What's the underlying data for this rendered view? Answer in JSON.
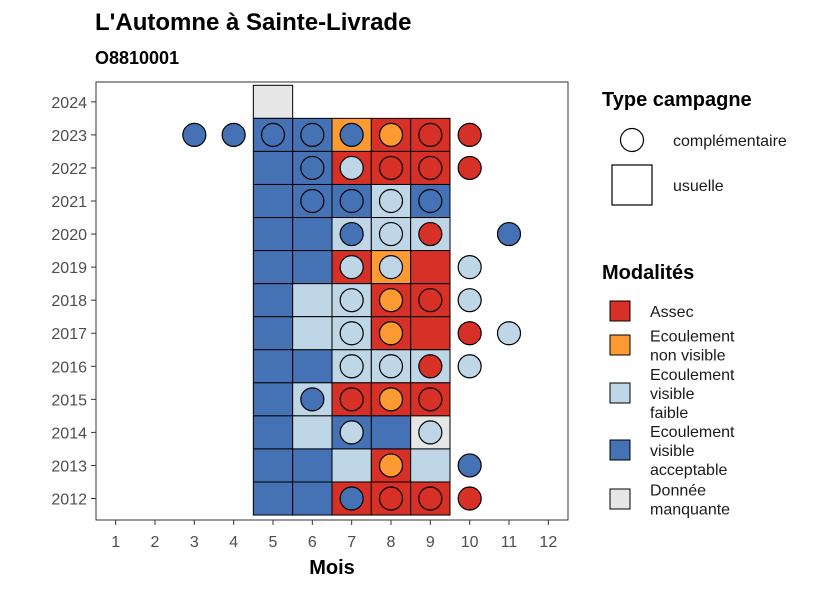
{
  "chart_data": {
    "type": "heatmap",
    "title": "L'Automne à Sainte-Livrade",
    "subtitle": "O8810001",
    "xlabel": "Mois",
    "ylabel": "",
    "x_ticks": [
      "1",
      "2",
      "3",
      "4",
      "5",
      "6",
      "7",
      "8",
      "9",
      "10",
      "11",
      "12"
    ],
    "y_ticks": [
      "2012",
      "2013",
      "2014",
      "2015",
      "2016",
      "2017",
      "2018",
      "2019",
      "2020",
      "2021",
      "2022",
      "2023",
      "2024"
    ],
    "xlim": [
      0.5,
      12.5
    ],
    "ylim": [
      2011.35,
      2024.6
    ],
    "colors": {
      "assec": "#d73027",
      "ecoulement_non_visible": "#fd9b32",
      "ecoulement_visible_faible": "#bed6e6",
      "ecoulement_visible_acceptable": "#4572b4",
      "donnee_manquante": "#e6e6e6"
    },
    "squares": [
      {
        "year": 2024,
        "month": 5,
        "mod": "donnee_manquante"
      },
      {
        "year": 2023,
        "month": 5,
        "mod": "ecoulement_visible_acceptable"
      },
      {
        "year": 2023,
        "month": 6,
        "mod": "ecoulement_visible_acceptable"
      },
      {
        "year": 2023,
        "month": 7,
        "mod": "ecoulement_non_visible"
      },
      {
        "year": 2023,
        "month": 8,
        "mod": "assec"
      },
      {
        "year": 2023,
        "month": 9,
        "mod": "assec"
      },
      {
        "year": 2022,
        "month": 5,
        "mod": "ecoulement_visible_acceptable"
      },
      {
        "year": 2022,
        "month": 6,
        "mod": "ecoulement_visible_acceptable"
      },
      {
        "year": 2022,
        "month": 7,
        "mod": "assec"
      },
      {
        "year": 2022,
        "month": 8,
        "mod": "assec"
      },
      {
        "year": 2022,
        "month": 9,
        "mod": "assec"
      },
      {
        "year": 2021,
        "month": 5,
        "mod": "ecoulement_visible_acceptable"
      },
      {
        "year": 2021,
        "month": 6,
        "mod": "ecoulement_visible_acceptable"
      },
      {
        "year": 2021,
        "month": 7,
        "mod": "ecoulement_visible_acceptable"
      },
      {
        "year": 2021,
        "month": 8,
        "mod": "ecoulement_visible_faible"
      },
      {
        "year": 2021,
        "month": 9,
        "mod": "ecoulement_visible_acceptable"
      },
      {
        "year": 2020,
        "month": 5,
        "mod": "ecoulement_visible_acceptable"
      },
      {
        "year": 2020,
        "month": 6,
        "mod": "ecoulement_visible_acceptable"
      },
      {
        "year": 2020,
        "month": 7,
        "mod": "ecoulement_visible_faible"
      },
      {
        "year": 2020,
        "month": 8,
        "mod": "ecoulement_visible_faible"
      },
      {
        "year": 2020,
        "month": 9,
        "mod": "ecoulement_visible_faible"
      },
      {
        "year": 2019,
        "month": 5,
        "mod": "ecoulement_visible_acceptable"
      },
      {
        "year": 2019,
        "month": 6,
        "mod": "ecoulement_visible_acceptable"
      },
      {
        "year": 2019,
        "month": 7,
        "mod": "assec"
      },
      {
        "year": 2019,
        "month": 8,
        "mod": "ecoulement_non_visible"
      },
      {
        "year": 2019,
        "month": 9,
        "mod": "assec"
      },
      {
        "year": 2018,
        "month": 5,
        "mod": "ecoulement_visible_acceptable"
      },
      {
        "year": 2018,
        "month": 6,
        "mod": "ecoulement_visible_faible"
      },
      {
        "year": 2018,
        "month": 7,
        "mod": "ecoulement_visible_faible"
      },
      {
        "year": 2018,
        "month": 8,
        "mod": "assec"
      },
      {
        "year": 2018,
        "month": 9,
        "mod": "assec"
      },
      {
        "year": 2017,
        "month": 5,
        "mod": "ecoulement_visible_acceptable"
      },
      {
        "year": 2017,
        "month": 6,
        "mod": "ecoulement_visible_faible"
      },
      {
        "year": 2017,
        "month": 7,
        "mod": "ecoulement_visible_faible"
      },
      {
        "year": 2017,
        "month": 8,
        "mod": "assec"
      },
      {
        "year": 2017,
        "month": 9,
        "mod": "assec"
      },
      {
        "year": 2016,
        "month": 5,
        "mod": "ecoulement_visible_acceptable"
      },
      {
        "year": 2016,
        "month": 6,
        "mod": "ecoulement_visible_acceptable"
      },
      {
        "year": 2016,
        "month": 7,
        "mod": "ecoulement_visible_faible"
      },
      {
        "year": 2016,
        "month": 8,
        "mod": "ecoulement_visible_faible"
      },
      {
        "year": 2016,
        "month": 9,
        "mod": "ecoulement_visible_faible"
      },
      {
        "year": 2015,
        "month": 5,
        "mod": "ecoulement_visible_acceptable"
      },
      {
        "year": 2015,
        "month": 6,
        "mod": "ecoulement_visible_faible"
      },
      {
        "year": 2015,
        "month": 7,
        "mod": "assec"
      },
      {
        "year": 2015,
        "month": 8,
        "mod": "assec"
      },
      {
        "year": 2015,
        "month": 9,
        "mod": "assec"
      },
      {
        "year": 2014,
        "month": 5,
        "mod": "ecoulement_visible_acceptable"
      },
      {
        "year": 2014,
        "month": 6,
        "mod": "ecoulement_visible_faible"
      },
      {
        "year": 2014,
        "month": 7,
        "mod": "ecoulement_visible_acceptable"
      },
      {
        "year": 2014,
        "month": 8,
        "mod": "ecoulement_visible_acceptable"
      },
      {
        "year": 2014,
        "month": 9,
        "mod": "donnee_manquante"
      },
      {
        "year": 2013,
        "month": 5,
        "mod": "ecoulement_visible_acceptable"
      },
      {
        "year": 2013,
        "month": 6,
        "mod": "ecoulement_visible_acceptable"
      },
      {
        "year": 2013,
        "month": 7,
        "mod": "ecoulement_visible_faible"
      },
      {
        "year": 2013,
        "month": 8,
        "mod": "assec"
      },
      {
        "year": 2013,
        "month": 9,
        "mod": "ecoulement_visible_faible"
      },
      {
        "year": 2012,
        "month": 5,
        "mod": "ecoulement_visible_acceptable"
      },
      {
        "year": 2012,
        "month": 6,
        "mod": "ecoulement_visible_acceptable"
      },
      {
        "year": 2012,
        "month": 7,
        "mod": "assec"
      },
      {
        "year": 2012,
        "month": 8,
        "mod": "assec"
      },
      {
        "year": 2012,
        "month": 9,
        "mod": "assec"
      }
    ],
    "circles": [
      {
        "year": 2023,
        "month": 3,
        "mod": "ecoulement_visible_acceptable"
      },
      {
        "year": 2023,
        "month": 4,
        "mod": "ecoulement_visible_acceptable"
      },
      {
        "year": 2023,
        "month": 5,
        "mod": "ecoulement_visible_acceptable"
      },
      {
        "year": 2023,
        "month": 6,
        "mod": "ecoulement_visible_acceptable"
      },
      {
        "year": 2023,
        "month": 7,
        "mod": "ecoulement_visible_acceptable"
      },
      {
        "year": 2023,
        "month": 8,
        "mod": "ecoulement_non_visible"
      },
      {
        "year": 2023,
        "month": 9,
        "mod": "assec"
      },
      {
        "year": 2023,
        "month": 10,
        "mod": "assec"
      },
      {
        "year": 2022,
        "month": 6,
        "mod": "ecoulement_visible_acceptable"
      },
      {
        "year": 2022,
        "month": 7,
        "mod": "ecoulement_visible_faible"
      },
      {
        "year": 2022,
        "month": 8,
        "mod": "assec"
      },
      {
        "year": 2022,
        "month": 9,
        "mod": "assec"
      },
      {
        "year": 2022,
        "month": 10,
        "mod": "assec"
      },
      {
        "year": 2021,
        "month": 6,
        "mod": "ecoulement_visible_acceptable"
      },
      {
        "year": 2021,
        "month": 7,
        "mod": "ecoulement_visible_acceptable"
      },
      {
        "year": 2021,
        "month": 8,
        "mod": "ecoulement_visible_faible"
      },
      {
        "year": 2021,
        "month": 9,
        "mod": "ecoulement_visible_acceptable"
      },
      {
        "year": 2020,
        "month": 7,
        "mod": "ecoulement_visible_acceptable"
      },
      {
        "year": 2020,
        "month": 8,
        "mod": "ecoulement_visible_faible"
      },
      {
        "year": 2020,
        "month": 9,
        "mod": "assec"
      },
      {
        "year": 2020,
        "month": 11,
        "mod": "ecoulement_visible_acceptable"
      },
      {
        "year": 2019,
        "month": 7,
        "mod": "ecoulement_visible_faible"
      },
      {
        "year": 2019,
        "month": 8,
        "mod": "ecoulement_visible_faible"
      },
      {
        "year": 2019,
        "month": 10,
        "mod": "ecoulement_visible_faible"
      },
      {
        "year": 2018,
        "month": 7,
        "mod": "ecoulement_visible_faible"
      },
      {
        "year": 2018,
        "month": 8,
        "mod": "ecoulement_non_visible"
      },
      {
        "year": 2018,
        "month": 9,
        "mod": "assec"
      },
      {
        "year": 2018,
        "month": 10,
        "mod": "ecoulement_visible_faible"
      },
      {
        "year": 2017,
        "month": 7,
        "mod": "ecoulement_visible_faible"
      },
      {
        "year": 2017,
        "month": 8,
        "mod": "ecoulement_non_visible"
      },
      {
        "year": 2017,
        "month": 10,
        "mod": "assec"
      },
      {
        "year": 2017,
        "month": 11,
        "mod": "ecoulement_visible_faible"
      },
      {
        "year": 2016,
        "month": 7,
        "mod": "ecoulement_visible_faible"
      },
      {
        "year": 2016,
        "month": 8,
        "mod": "ecoulement_visible_faible"
      },
      {
        "year": 2016,
        "month": 9,
        "mod": "assec"
      },
      {
        "year": 2016,
        "month": 10,
        "mod": "ecoulement_visible_faible"
      },
      {
        "year": 2015,
        "month": 6,
        "mod": "ecoulement_visible_acceptable"
      },
      {
        "year": 2015,
        "month": 7,
        "mod": "assec"
      },
      {
        "year": 2015,
        "month": 8,
        "mod": "ecoulement_non_visible"
      },
      {
        "year": 2015,
        "month": 9,
        "mod": "assec"
      },
      {
        "year": 2014,
        "month": 7,
        "mod": "ecoulement_visible_faible"
      },
      {
        "year": 2014,
        "month": 9,
        "mod": "ecoulement_visible_faible"
      },
      {
        "year": 2013,
        "month": 8,
        "mod": "ecoulement_non_visible"
      },
      {
        "year": 2013,
        "month": 10,
        "mod": "ecoulement_visible_acceptable"
      },
      {
        "year": 2012,
        "month": 7,
        "mod": "ecoulement_visible_acceptable"
      },
      {
        "year": 2012,
        "month": 8,
        "mod": "assec"
      },
      {
        "year": 2012,
        "month": 9,
        "mod": "assec"
      },
      {
        "year": 2012,
        "month": 10,
        "mod": "assec"
      }
    ],
    "legend_placement": "right",
    "legend_type": {
      "title": "Type campagne",
      "items": [
        {
          "shape": "circle",
          "label": "complémentaire"
        },
        {
          "shape": "square",
          "label": "usuelle"
        }
      ]
    },
    "legend_modalites": {
      "title": "Modalités",
      "items": [
        {
          "key": "assec",
          "lines": [
            "Assec"
          ]
        },
        {
          "key": "ecoulement_non_visible",
          "lines": [
            "Ecoulement",
            "non visible"
          ]
        },
        {
          "key": "ecoulement_visible_faible",
          "lines": [
            "Ecoulement",
            "visible",
            "faible"
          ]
        },
        {
          "key": "ecoulement_visible_acceptable",
          "lines": [
            "Ecoulement",
            "visible",
            "acceptable"
          ]
        },
        {
          "key": "donnee_manquante",
          "lines": [
            "Donnée",
            "manquante"
          ]
        }
      ]
    }
  }
}
